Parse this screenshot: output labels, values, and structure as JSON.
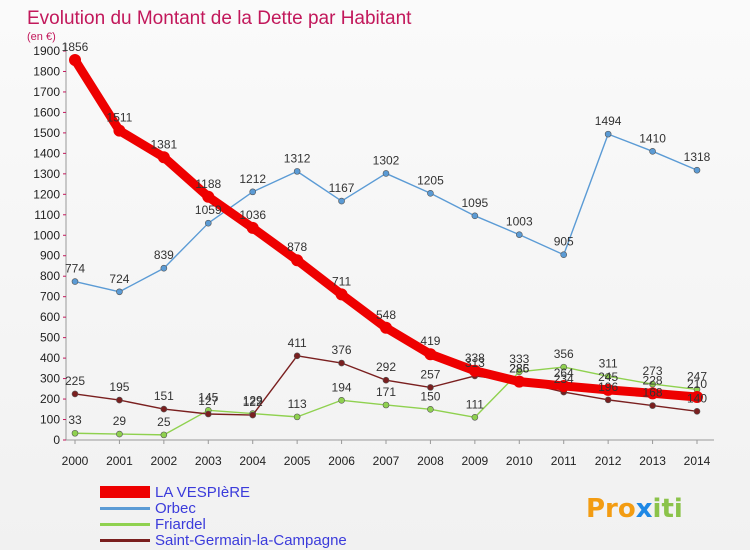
{
  "chart_data": {
    "type": "line",
    "title": "Evolution du Montant de la Dette par Habitant",
    "subtitle": "(en €)",
    "xlabel": "",
    "ylabel": "",
    "ylim": [
      0,
      1900
    ],
    "y_ticks": [
      0,
      100,
      200,
      300,
      400,
      500,
      600,
      700,
      800,
      900,
      1000,
      1100,
      1200,
      1300,
      1400,
      1500,
      1600,
      1700,
      1800,
      1900
    ],
    "x": [
      "2000",
      "2001",
      "2002",
      "2003",
      "2004",
      "2005",
      "2006",
      "2007",
      "2008",
      "2009",
      "2010",
      "2011",
      "2012",
      "2013",
      "2014"
    ],
    "grid": false,
    "legend_position": "bottom-left",
    "series": [
      {
        "name": "LA VESPIèRE",
        "color": "#ee0000",
        "values": [
          1856,
          1511,
          1381,
          1188,
          1036,
          878,
          711,
          548,
          419,
          338,
          285,
          264,
          245,
          228,
          210
        ],
        "labels": [
          "1856",
          "1511",
          "1381",
          "1188",
          "1036",
          "878",
          "711",
          "548",
          "419",
          "338",
          "285",
          "264",
          "245",
          "228",
          "210"
        ]
      },
      {
        "name": "Orbec",
        "color": "#5b9bd5",
        "values": [
          774,
          724,
          839,
          1059,
          1212,
          1312,
          1167,
          1302,
          1205,
          1095,
          1003,
          905,
          1494,
          1410,
          1318
        ],
        "labels": [
          "774",
          "724",
          "839",
          "1059",
          "1212",
          "1312",
          "1167",
          "1302",
          "1205",
          "1095",
          "1003",
          "905",
          "1494",
          "1410",
          "1318"
        ]
      },
      {
        "name": "Friardel",
        "color": "#8fd14f",
        "values": [
          33,
          29,
          25,
          145,
          129,
          113,
          194,
          171,
          150,
          111,
          333,
          356,
          311,
          273,
          247
        ],
        "labels": [
          "33",
          "29",
          "25",
          "145",
          "129",
          "113",
          "194",
          "171",
          "150",
          "111",
          "333",
          "356",
          "311",
          "273",
          "247"
        ]
      },
      {
        "name": "Saint-Germain-la-Campagne",
        "color": "#7a1f1f",
        "values": [
          225,
          195,
          151,
          127,
          122,
          411,
          376,
          292,
          257,
          313,
          286,
          234,
          196,
          168,
          140
        ],
        "labels": [
          "225",
          "195",
          "151",
          "127",
          "122",
          "411",
          "376",
          "292",
          "257",
          "313",
          "286",
          "234",
          "196",
          "168",
          "140"
        ]
      }
    ]
  },
  "logo": {
    "text_prefix": "Pro",
    "text_x": "x",
    "text_suffix": "iti"
  }
}
